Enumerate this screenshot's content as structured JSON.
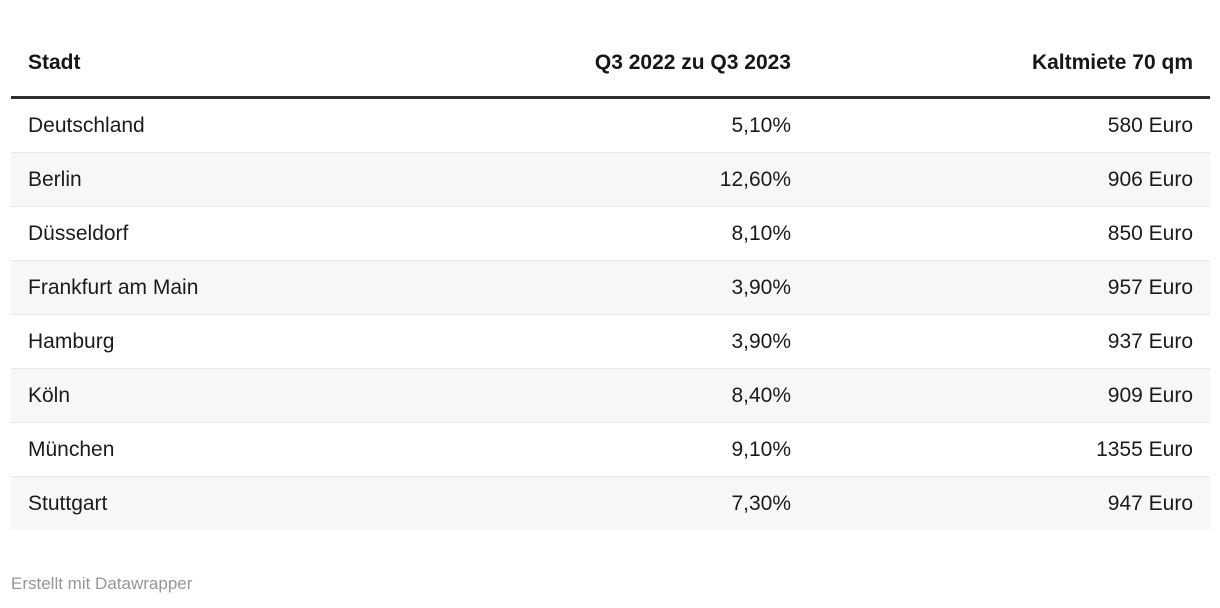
{
  "table": {
    "columns": [
      {
        "label": "Stadt",
        "field": "stadt",
        "align": "left"
      },
      {
        "label": "Q3 2022 zu Q3 2023",
        "field": "change",
        "align": "right"
      },
      {
        "label": "Kaltmiete 70 qm",
        "field": "rent",
        "align": "right"
      }
    ],
    "rows": [
      {
        "stadt": "Deutschland",
        "change": "5,10%",
        "rent": "580 Euro"
      },
      {
        "stadt": "Berlin",
        "change": "12,60%",
        "rent": "906 Euro"
      },
      {
        "stadt": "Düsseldorf",
        "change": "8,10%",
        "rent": "850 Euro"
      },
      {
        "stadt": "Frankfurt am Main",
        "change": "3,90%",
        "rent": "957 Euro"
      },
      {
        "stadt": "Hamburg",
        "change": "3,90%",
        "rent": "937 Euro"
      },
      {
        "stadt": "Köln",
        "change": "8,40%",
        "rent": "909 Euro"
      },
      {
        "stadt": "München",
        "change": "9,10%",
        "rent": "1355 Euro"
      },
      {
        "stadt": "Stuttgart",
        "change": "7,30%",
        "rent": "947 Euro"
      }
    ]
  },
  "footer": {
    "attribution": "Erstellt mit Datawrapper"
  },
  "colors": {
    "text": "#1b1b1b",
    "header_rule": "#2e2e2e",
    "row_stripe": "#f7f7f7",
    "row_border": "#e8e8e8",
    "footer_text": "#979797",
    "background": "#ffffff"
  }
}
